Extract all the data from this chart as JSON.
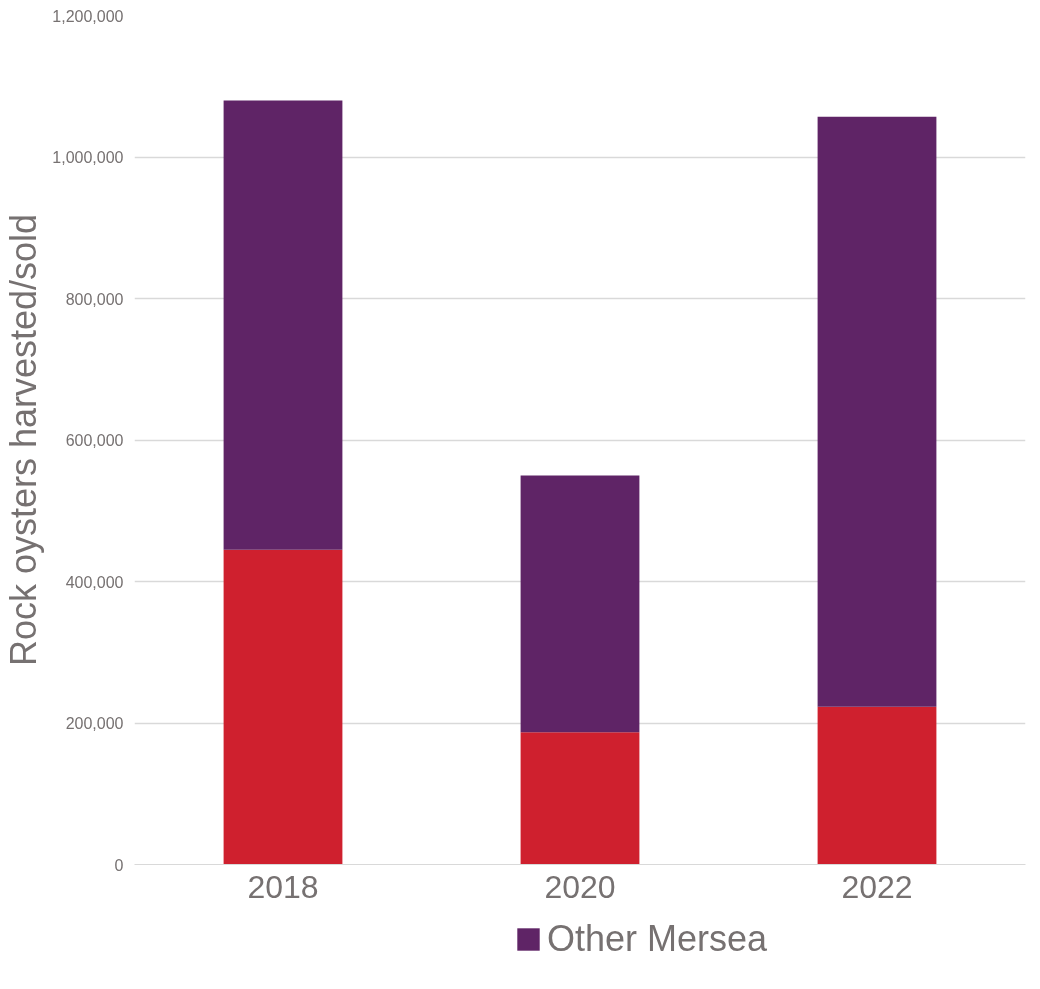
{
  "chart_data": {
    "type": "bar",
    "stacked": true,
    "ylabel": "Rock oysters harvested/sold",
    "categories": [
      "2018",
      "2020",
      "2022"
    ],
    "series": [
      {
        "color": "#cf202e",
        "values": [
          445000,
          187000,
          223000
        ]
      },
      {
        "name": "Other Mersea",
        "color": "#5f2466",
        "values": [
          635000,
          363000,
          834000
        ]
      }
    ],
    "ylim": [
      0,
      1200000
    ],
    "yticks": [
      {
        "value": 0,
        "label": "0"
      },
      {
        "value": 200000,
        "label": "200,000"
      },
      {
        "value": 400000,
        "label": "400,000"
      },
      {
        "value": 600000,
        "label": "600,000"
      },
      {
        "value": 800000,
        "label": "800,000"
      },
      {
        "value": 1000000,
        "label": "1,000,000"
      },
      {
        "value": 1200000,
        "label": "1,200,000"
      }
    ],
    "grid": "y",
    "legend": "bottom"
  }
}
